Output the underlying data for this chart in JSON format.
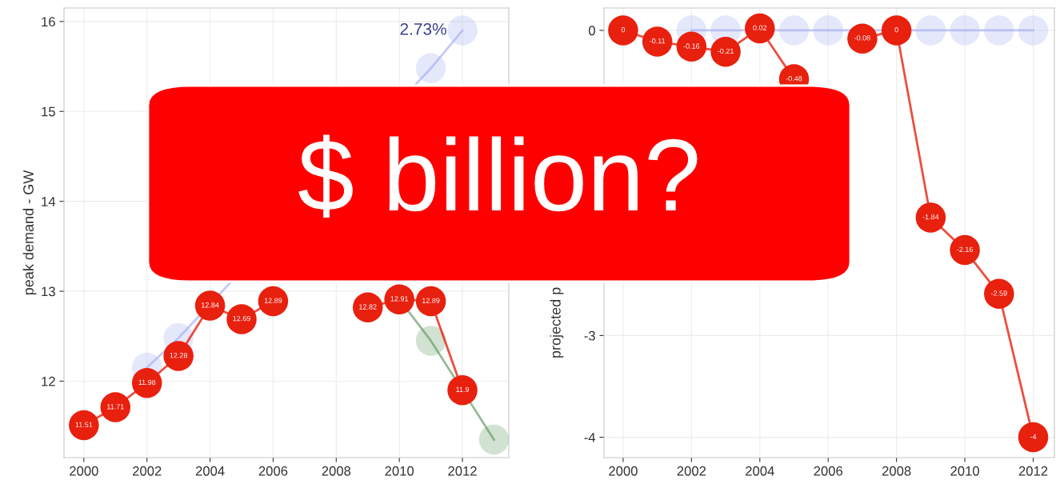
{
  "chart_data": [
    {
      "type": "line",
      "ylabel": "peak demand - GW",
      "x": [
        2000,
        2001,
        2002,
        2003,
        2004,
        2005,
        2006,
        2007,
        2008,
        2009,
        2010,
        2011,
        2012
      ],
      "xlim": [
        1999.37,
        2013.47
      ],
      "xticks": [
        2000,
        2002,
        2004,
        2006,
        2008,
        2010,
        2012
      ],
      "ylim": [
        11.15,
        16.15
      ],
      "yticks": [
        12,
        13,
        14,
        15,
        16
      ],
      "grid": true,
      "marker": "circle",
      "line_style": "solid",
      "series": [
        {
          "color": "#aab2f2",
          "values": [
            null,
            null,
            12.15,
            12.48,
            null,
            null,
            null,
            null,
            null,
            null,
            null,
            15.48,
            15.9
          ]
        },
        {
          "color": "#6a9e6a",
          "x": [
            2010,
            2011,
            2013
          ],
          "values": [
            12.91,
            12.45,
            11.35
          ]
        },
        {
          "color": "#e8200e",
          "values": [
            11.51,
            11.71,
            11.98,
            12.28,
            12.84,
            12.69,
            12.89,
            null,
            null,
            12.82,
            12.91,
            12.89,
            11.9
          ],
          "value_labels": [
            "11.51",
            "11.71",
            "11.98",
            "12.28",
            "12.84",
            "12.69",
            "12.89",
            null,
            null,
            "12.82",
            "12.91",
            "12.89",
            "11.9"
          ]
        }
      ],
      "annotations": [
        {
          "text": "2.73%",
          "x": 2012,
          "y": 15.9
        },
        "$ billion?"
      ]
    },
    {
      "type": "line",
      "ylabel": "projected p",
      "x": [
        2000,
        2001,
        2002,
        2003,
        2004,
        2005,
        2006,
        2007,
        2008,
        2009,
        2010,
        2011,
        2012
      ],
      "xlim": [
        1999.44,
        2012.62
      ],
      "xticks": [
        2000,
        2002,
        2004,
        2006,
        2008,
        2010,
        2012
      ],
      "ylim": [
        -4.2,
        0.22
      ],
      "yticks": [
        -4,
        -3,
        0
      ],
      "grid": true,
      "marker": "circle",
      "line_style": "solid",
      "series": [
        {
          "color": "#aab2f2",
          "values": [
            null,
            null,
            0,
            0,
            null,
            0,
            0,
            null,
            null,
            0,
            0,
            0,
            0
          ]
        },
        {
          "color": "#e8200e",
          "values": [
            0,
            -0.11,
            -0.16,
            -0.21,
            0.02,
            -0.48,
            null,
            -0.08,
            0,
            -1.84,
            -2.16,
            -2.59,
            -4
          ],
          "value_labels": [
            "0",
            "-0.11",
            "-0.16",
            "-0.21",
            "0.02",
            "-0.48",
            null,
            "-0.08",
            "0",
            "-1.84",
            "-2.16",
            "-2.59",
            "-4"
          ]
        }
      ]
    }
  ]
}
